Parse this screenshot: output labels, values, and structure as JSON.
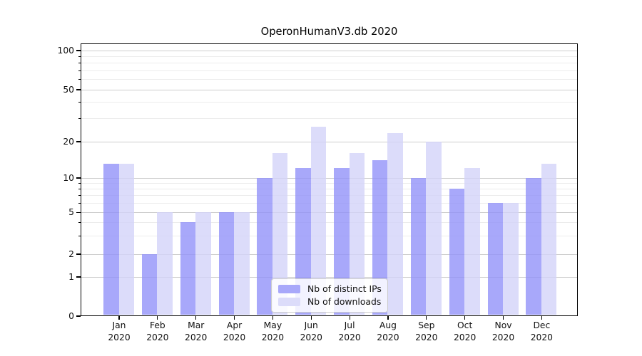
{
  "chart_data": {
    "type": "bar",
    "title": "OperonHumanV3.db 2020",
    "categories": [
      "Jan",
      "Feb",
      "Mar",
      "Apr",
      "May",
      "Jun",
      "Jul",
      "Aug",
      "Sep",
      "Oct",
      "Nov",
      "Dec"
    ],
    "year": "2020",
    "series": [
      {
        "id": "distinct_ips",
        "name": "Nb of distinct IPs",
        "color": "#a8a8fa",
        "values": [
          13,
          2,
          4,
          5,
          10,
          12,
          12,
          14,
          10,
          8,
          6,
          10
        ]
      },
      {
        "id": "downloads",
        "name": "Nb of downloads",
        "color": "#dcdcfa",
        "values": [
          13,
          5,
          5,
          5,
          16,
          26,
          16,
          23,
          20,
          12,
          6,
          13
        ]
      }
    ],
    "xlabel": "",
    "ylabel": "",
    "y_axis": {
      "scale": "symlog",
      "major_ticks": [
        100,
        50,
        20,
        10,
        5,
        2,
        1,
        0
      ],
      "minor_gridlines": [
        3,
        4,
        6,
        7,
        8,
        9,
        30,
        40,
        60,
        70,
        80,
        90
      ],
      "ylim": [
        0,
        112
      ]
    },
    "grid": true,
    "legend_position": "lower center",
    "colors": {
      "spine": "#000000",
      "grid_major": "#cdcdcd",
      "grid_minor": "#ececec",
      "background": "#ffffff"
    }
  }
}
